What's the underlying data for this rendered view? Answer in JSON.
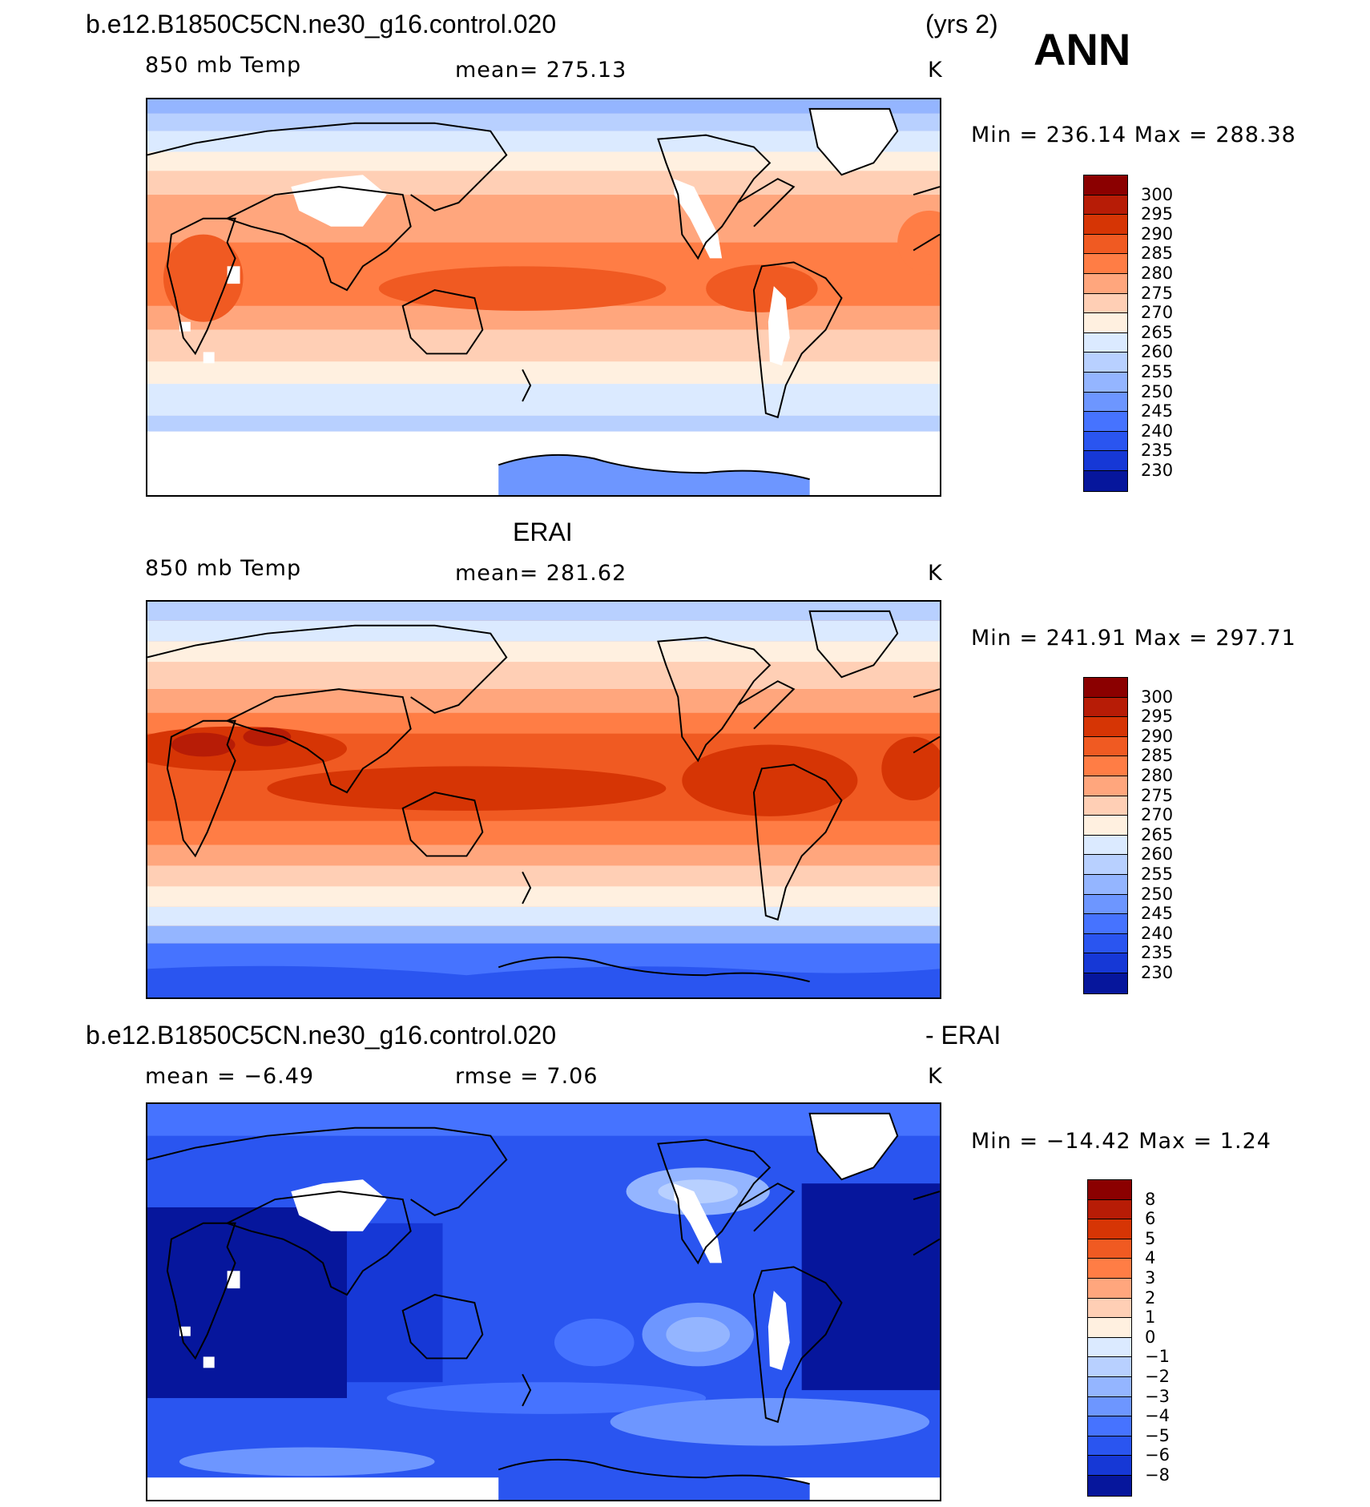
{
  "header": {
    "case_name": "b.e12.B1850C5CN.ne30_g16.control.020",
    "years": "(yrs 2)",
    "season": "ANN"
  },
  "panels": [
    {
      "id": "model",
      "variable": "850 mb Temp",
      "stat": "mean=  275.13",
      "units": "K",
      "range": "Min  =  236.14  Max  =  288.38",
      "levels": [
        "300",
        "295",
        "290",
        "285",
        "280",
        "275",
        "270",
        "265",
        "260",
        "255",
        "250",
        "245",
        "240",
        "235",
        "230"
      ],
      "colors": [
        "#8b0000",
        "#b71c06",
        "#d63505",
        "#f05a22",
        "#ff7d45",
        "#ffa67d",
        "#ffcfb5",
        "#fff0e0",
        "#dbeaff",
        "#b8d0ff",
        "#94b5ff",
        "#6d96ff",
        "#4673ff",
        "#2a55f0",
        "#1638d6",
        "#06169c"
      ]
    },
    {
      "id": "obs",
      "title": "ERAI",
      "variable": "850 mb Temp",
      "stat": "mean=  281.62",
      "units": "K",
      "range": "Min  =  241.91  Max  =  297.71",
      "levels": [
        "300",
        "295",
        "290",
        "285",
        "280",
        "275",
        "270",
        "265",
        "260",
        "255",
        "250",
        "245",
        "240",
        "235",
        "230"
      ],
      "colors": [
        "#8b0000",
        "#b71c06",
        "#d63505",
        "#f05a22",
        "#ff7d45",
        "#ffa67d",
        "#ffcfb5",
        "#fff0e0",
        "#dbeaff",
        "#b8d0ff",
        "#94b5ff",
        "#6d96ff",
        "#4673ff",
        "#2a55f0",
        "#1638d6",
        "#06169c"
      ]
    },
    {
      "id": "diff",
      "title_left": "b.e12.B1850C5CN.ne30_g16.control.020",
      "title_right": "- ERAI",
      "stat": "mean =    −6.49",
      "stat2": "rmse =      7.06",
      "units": "K",
      "range": "Min  =  −14.42  Max  =      1.24",
      "levels": [
        "8",
        "6",
        "5",
        "4",
        "3",
        "2",
        "1",
        "0",
        "−1",
        "−2",
        "−3",
        "−4",
        "−5",
        "−6",
        "−8"
      ],
      "colors": [
        "#8b0000",
        "#b71c06",
        "#d63505",
        "#f05a22",
        "#ff7d45",
        "#ffa67d",
        "#ffcfb5",
        "#fff0e0",
        "#dbeaff",
        "#b8d0ff",
        "#94b5ff",
        "#6d96ff",
        "#4673ff",
        "#2a55f0",
        "#1638d6",
        "#06169c"
      ]
    }
  ]
}
